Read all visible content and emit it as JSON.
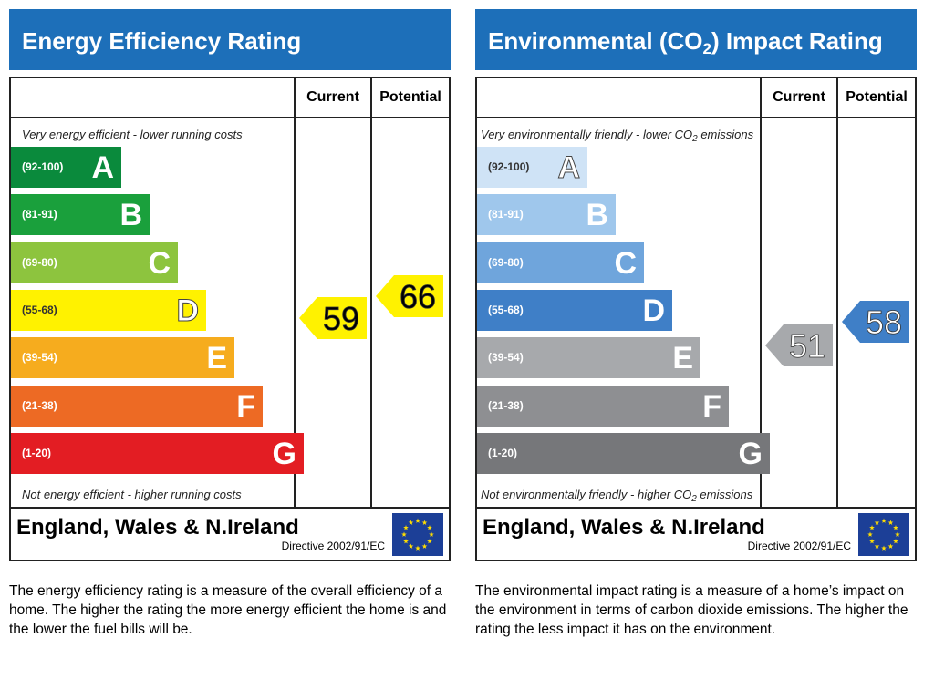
{
  "chart_data": [
    {
      "type": "bar",
      "title": "Energy Efficiency Rating",
      "columns": [
        "Current",
        "Potential"
      ],
      "top_note": "Very energy efficient - lower running costs",
      "bottom_note": "Not energy efficient - higher running costs",
      "bands": [
        {
          "letter": "A",
          "range": "(92-100)",
          "color": "#0a8a3c"
        },
        {
          "letter": "B",
          "range": "(81-91)",
          "color": "#1aa03c"
        },
        {
          "letter": "C",
          "range": "(69-80)",
          "color": "#8dc43e"
        },
        {
          "letter": "D",
          "range": "(55-68)",
          "color": "#fff200"
        },
        {
          "letter": "E",
          "range": "(39-54)",
          "color": "#f6ac1e"
        },
        {
          "letter": "F",
          "range": "(21-38)",
          "color": "#ed6a24"
        },
        {
          "letter": "G",
          "range": "(1-20)",
          "color": "#e31d23"
        }
      ],
      "current": {
        "value": 59,
        "label": "59",
        "color": "#fff200"
      },
      "potential": {
        "value": 66,
        "label": "66",
        "color": "#fff200"
      },
      "region": "England, Wales & N.Ireland",
      "directive": "Directive 2002/91/EC",
      "description": "The energy efficiency rating is a measure of the overall efficiency of a home. The higher the rating the more energy efficient the home is and the lower the fuel bills will be."
    },
    {
      "type": "bar",
      "title_main": "Environmental (CO",
      "title_sub": "2",
      "title_end": ") Impact Rating",
      "columns": [
        "Current",
        "Potential"
      ],
      "top_note": "Very environmentally friendly - lower CO",
      "top_note_sub": "2",
      "top_note_end": " emissions",
      "bottom_note": "Not environmentally friendly - higher CO",
      "bottom_note_sub": "2",
      "bottom_note_end": " emissions",
      "bands": [
        {
          "letter": "A",
          "range": "(92-100)",
          "color": "#cfe3f6"
        },
        {
          "letter": "B",
          "range": "(81-91)",
          "color": "#9fc7ec"
        },
        {
          "letter": "C",
          "range": "(69-80)",
          "color": "#6fa5dc"
        },
        {
          "letter": "D",
          "range": "(55-68)",
          "color": "#3f7fc7"
        },
        {
          "letter": "E",
          "range": "(39-54)",
          "color": "#a7a9ac"
        },
        {
          "letter": "F",
          "range": "(21-38)",
          "color": "#8e8f92"
        },
        {
          "letter": "G",
          "range": "(1-20)",
          "color": "#76777a"
        }
      ],
      "current": {
        "value": 51,
        "label": "51",
        "color": "#a7a9ac"
      },
      "potential": {
        "value": 58,
        "label": "58",
        "color": "#3f7fc7"
      },
      "region": "England, Wales & N.Ireland",
      "directive": "Directive 2002/91/EC",
      "description": "The environmental impact rating is a measure of a home’s impact on the environment in terms of carbon dioxide emissions. The higher the rating the less impact it has on the environment."
    }
  ]
}
